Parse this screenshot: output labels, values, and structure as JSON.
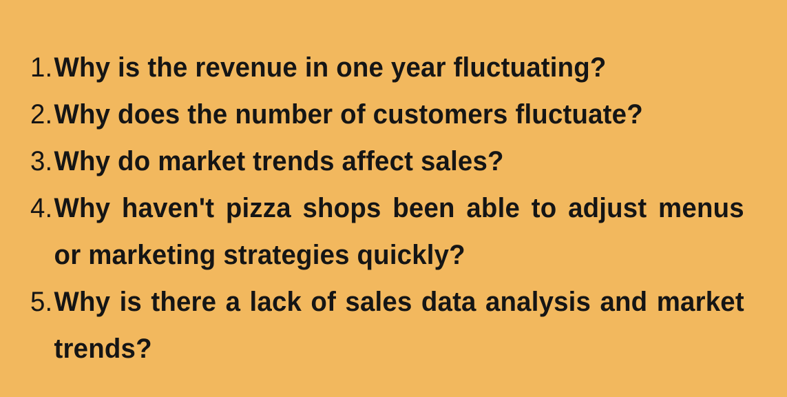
{
  "items": [
    {
      "num": "1.",
      "text": "Why is the revenue in one year fluctuating?"
    },
    {
      "num": "2.",
      "text": "Why does the number of customers fluctuate?"
    },
    {
      "num": "3.",
      "text": "Why do market trends affect sales?"
    },
    {
      "num": "4.",
      "text": "Why haven't pizza shops been able to adjust menus or marketing strategies quickly?"
    },
    {
      "num": "5.",
      "text": "Why is there a lack of sales data analysis and market trends?"
    }
  ],
  "colors": {
    "background": "#f2b85e",
    "text": "#151515"
  }
}
